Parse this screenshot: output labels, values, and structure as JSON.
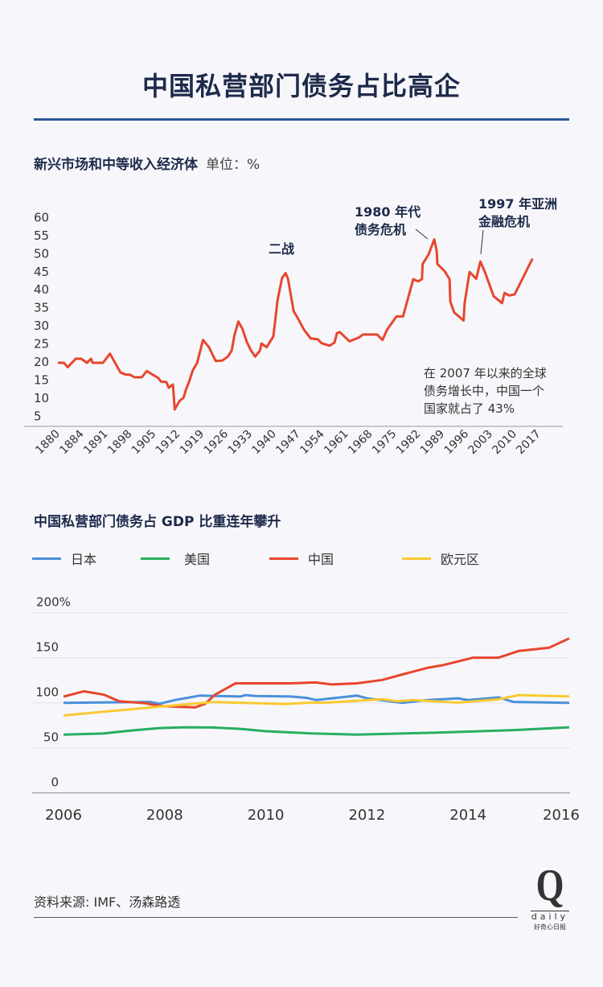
{
  "header": {
    "title": "中国私营部门债务占比高企"
  },
  "colors": {
    "accent": "#2b5797",
    "title": "#1e2a4a",
    "background": "#f7f7fb"
  },
  "chart_data": [
    {
      "type": "line",
      "title": "新兴市场和中等收入经济体",
      "unit": "单位：%",
      "ylim": [
        5,
        60
      ],
      "yticks": [
        60,
        55,
        50,
        45,
        40,
        35,
        30,
        25,
        20,
        15,
        10,
        5
      ],
      "xticks": [
        1880,
        1884,
        1891,
        1898,
        1905,
        1912,
        1919,
        1926,
        1933,
        1940,
        1947,
        1954,
        1961,
        1968,
        1975,
        1982,
        1989,
        1996,
        2003,
        2010,
        2017
      ],
      "grid": false,
      "series": [
        {
          "color": "#e8462e",
          "points": [
            [
              1880,
              19.6
            ],
            [
              1881.7,
              19.6
            ],
            [
              1882.8,
              18.4
            ],
            [
              1885.1,
              20.7
            ],
            [
              1886.7,
              20.7
            ],
            [
              1888.3,
              19.6
            ],
            [
              1889.5,
              20.7
            ],
            [
              1889.9,
              19.6
            ],
            [
              1892.9,
              19.6
            ],
            [
              1894.9,
              22.1
            ],
            [
              1897.9,
              16.9
            ],
            [
              1899.5,
              16.3
            ],
            [
              1900.6,
              16.3
            ],
            [
              1901.9,
              15.6
            ],
            [
              1904,
              15.6
            ],
            [
              1905.4,
              17.3
            ],
            [
              1908.7,
              15.4
            ],
            [
              1909.6,
              14.3
            ],
            [
              1911,
              14.3
            ],
            [
              1911.7,
              12.7
            ],
            [
              1912.9,
              13.6
            ],
            [
              1913.4,
              6.7
            ],
            [
              1914.8,
              9.1
            ],
            [
              1915.9,
              9.9
            ],
            [
              1916.7,
              12.4
            ],
            [
              1917.5,
              14.3
            ],
            [
              1918.6,
              17.6
            ],
            [
              1919.8,
              19.5
            ],
            [
              1921.5,
              25.9
            ],
            [
              1923.2,
              23.9
            ],
            [
              1925.1,
              20.1
            ],
            [
              1927,
              20.2
            ],
            [
              1928.6,
              21.3
            ],
            [
              1929.7,
              23
            ],
            [
              1930.5,
              27.3
            ],
            [
              1931.6,
              31
            ],
            [
              1932.8,
              28.9
            ],
            [
              1934,
              25.4
            ],
            [
              1935.1,
              23.2
            ],
            [
              1936.4,
              21.3
            ],
            [
              1937.8,
              23
            ],
            [
              1938.2,
              24.9
            ],
            [
              1939.7,
              23.9
            ],
            [
              1941.6,
              26.9
            ],
            [
              1942.8,
              36.9
            ],
            [
              1944.1,
              43
            ],
            [
              1945.1,
              44.4
            ],
            [
              1945.8,
              42.8
            ],
            [
              1947.4,
              33.9
            ],
            [
              1948.5,
              32.1
            ],
            [
              1950.4,
              28.7
            ],
            [
              1952.3,
              26.3
            ],
            [
              1954.3,
              26.1
            ],
            [
              1955.4,
              25
            ],
            [
              1957.7,
              24.3
            ],
            [
              1959.1,
              25.2
            ],
            [
              1959.8,
              27.8
            ],
            [
              1960.6,
              28.1
            ],
            [
              1963.4,
              25.5
            ],
            [
              1966.1,
              26.6
            ],
            [
              1967.2,
              27.4
            ],
            [
              1971.3,
              27.4
            ],
            [
              1972.8,
              25.9
            ],
            [
              1974.1,
              28.7
            ],
            [
              1976.8,
              32.4
            ],
            [
              1978.7,
              32.4
            ],
            [
              1981.6,
              42.7
            ],
            [
              1983,
              42.1
            ],
            [
              1984.1,
              42.7
            ],
            [
              1984.3,
              46.9
            ],
            [
              1986,
              49.6
            ],
            [
              1987.6,
              53.7
            ],
            [
              1988.3,
              50.6
            ],
            [
              1988.5,
              46.9
            ],
            [
              1990.6,
              44.9
            ],
            [
              1992,
              42.7
            ],
            [
              1992.2,
              36.5
            ],
            [
              1993.3,
              33.5
            ],
            [
              1996,
              31.3
            ],
            [
              1996.3,
              36.1
            ],
            [
              1997.7,
              44.7
            ],
            [
              1999.6,
              42.8
            ],
            [
              2000.8,
              47.6
            ],
            [
              2002.1,
              44.7
            ],
            [
              2004.6,
              38
            ],
            [
              2007,
              36.1
            ],
            [
              2007.7,
              38.9
            ],
            [
              2009,
              38.2
            ],
            [
              2010.6,
              38.5
            ],
            [
              2015.7,
              48.4
            ]
          ]
        }
      ],
      "annotations": [
        {
          "lines": [
            "二战"
          ]
        },
        {
          "lines": [
            "1980 年代",
            "债务危机"
          ]
        },
        {
          "lines": [
            "1997 年亚洲",
            "金融危机"
          ]
        }
      ],
      "note": [
        "在 2007 年以来的全球",
        "债务增长中，中国一个",
        "国家就占了 43%"
      ]
    },
    {
      "type": "line",
      "title": "中国私营部门债务占 GDP 比重连年攀升",
      "ylim": [
        0,
        200
      ],
      "yticks": [
        "200%",
        "150",
        "100",
        "50",
        "0"
      ],
      "ytick_values": [
        200,
        150,
        100,
        50,
        0
      ],
      "xlim": [
        2006,
        2016
      ],
      "xticks": [
        2006,
        2008,
        2010,
        2012,
        2014,
        2016
      ],
      "grid": true,
      "legend": "top",
      "series": [
        {
          "name": "日本",
          "color": "#4a90d9",
          "points": [
            [
              2006,
              100
            ],
            [
              2007.7,
              101
            ],
            [
              2007.9,
              99
            ],
            [
              2008.2,
              103
            ],
            [
              2008.7,
              108
            ],
            [
              2009.5,
              107
            ],
            [
              2009.6,
              108.6
            ],
            [
              2009.8,
              107.5
            ],
            [
              2010.5,
              107
            ],
            [
              2010.8,
              105.5
            ],
            [
              2011,
              103
            ],
            [
              2011.8,
              108
            ],
            [
              2012,
              105
            ],
            [
              2012.7,
              100
            ],
            [
              2013.2,
              103
            ],
            [
              2013.8,
              105
            ],
            [
              2014,
              103
            ],
            [
              2014.6,
              106
            ],
            [
              2014.9,
              101
            ],
            [
              2016,
              100
            ]
          ]
        },
        {
          "name": "美国",
          "color": "#27ae60",
          "points": [
            [
              2006,
              64.6
            ],
            [
              2006.8,
              66
            ],
            [
              2007.3,
              69
            ],
            [
              2007.9,
              72
            ],
            [
              2008.4,
              72.9
            ],
            [
              2008.95,
              72.6
            ],
            [
              2009.5,
              71.1
            ],
            [
              2010,
              68.5
            ],
            [
              2010.9,
              66
            ],
            [
              2011.8,
              64.6
            ],
            [
              2013.4,
              67
            ],
            [
              2015,
              69.9
            ],
            [
              2016,
              72.9
            ]
          ]
        },
        {
          "name": "中国",
          "color": "#e8462e",
          "points": [
            [
              2006,
              106.9
            ],
            [
              2006.4,
              112.8
            ],
            [
              2006.8,
              109
            ],
            [
              2007.1,
              101.7
            ],
            [
              2007.6,
              99.6
            ],
            [
              2007.9,
              96.6
            ],
            [
              2008.2,
              95.7
            ],
            [
              2008.6,
              94.9
            ],
            [
              2008.8,
              98.8
            ],
            [
              2009,
              109.2
            ],
            [
              2009.4,
              121.6
            ],
            [
              2010.5,
              121.6
            ],
            [
              2010.9,
              122.5
            ],
            [
              2011,
              122.5
            ],
            [
              2011.3,
              120.4
            ],
            [
              2011.8,
              121.6
            ],
            [
              2012.3,
              125.4
            ],
            [
              2012.7,
              131.4
            ],
            [
              2013.2,
              138.8
            ],
            [
              2013.5,
              141.8
            ],
            [
              2014.1,
              150.1
            ],
            [
              2014.6,
              150.1
            ],
            [
              2015,
              157.5
            ],
            [
              2015.6,
              161.1
            ],
            [
              2016,
              171.5
            ]
          ]
        },
        {
          "name": "欧元区",
          "color": "#f9c932",
          "points": [
            [
              2006,
              86
            ],
            [
              2007.9,
              95.7
            ],
            [
              2008.95,
              100.8
            ],
            [
              2010,
              99.3
            ],
            [
              2010.4,
              98.7
            ],
            [
              2010.9,
              100.2
            ],
            [
              2011.2,
              100.2
            ],
            [
              2012.3,
              104
            ],
            [
              2012.6,
              101.7
            ],
            [
              2012.9,
              103
            ],
            [
              2013.8,
              100.2
            ],
            [
              2014.6,
              103.8
            ],
            [
              2015,
              108.6
            ],
            [
              2016,
              107.1
            ]
          ]
        }
      ]
    }
  ],
  "footer": {
    "source": "资料来源: IMF、汤森路透",
    "logo": {
      "mark": "Q",
      "word": "daily",
      "cn": "好奇心日报"
    }
  }
}
